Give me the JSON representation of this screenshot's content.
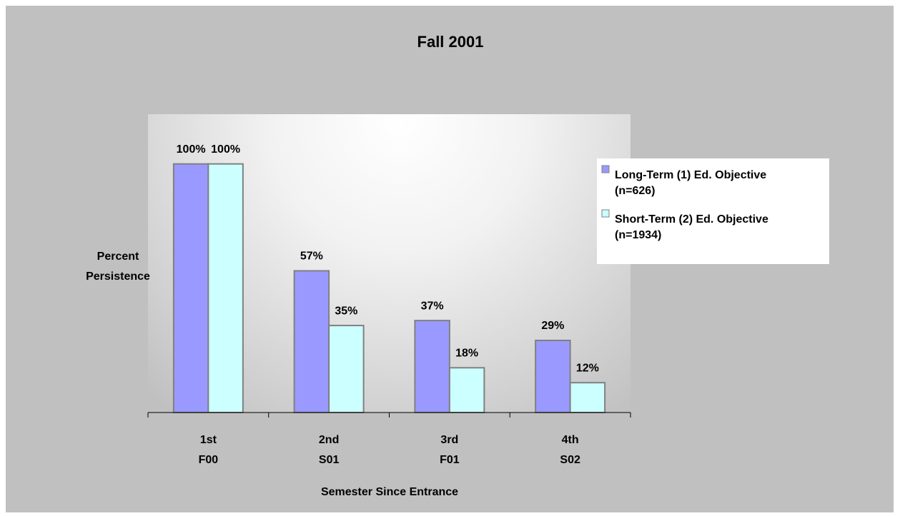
{
  "chart_data": {
    "type": "bar",
    "title": "Fall 2001",
    "categories": [
      "1st\nF00",
      "2nd\nS01",
      "3rd\nF01",
      "4th\nS02"
    ],
    "series": [
      {
        "name": "Long-Term (1) Ed. Objective\n(n=626)",
        "color": "#9999ff",
        "values": [
          100,
          57,
          37,
          29
        ],
        "value_labels": [
          "100%",
          "57%",
          "37%",
          "29%"
        ]
      },
      {
        "name": "Short-Term (2) Ed. Objective\n(n=1934)",
        "color": "#ccffff",
        "values": [
          100,
          35,
          18,
          12
        ],
        "value_labels": [
          "100%",
          "35%",
          "18%",
          "12%"
        ]
      }
    ],
    "ylim": [
      0,
      120
    ],
    "x_label": "Semester Since Entrance",
    "y_label": "Percent\nPersistence",
    "legend": "right"
  }
}
